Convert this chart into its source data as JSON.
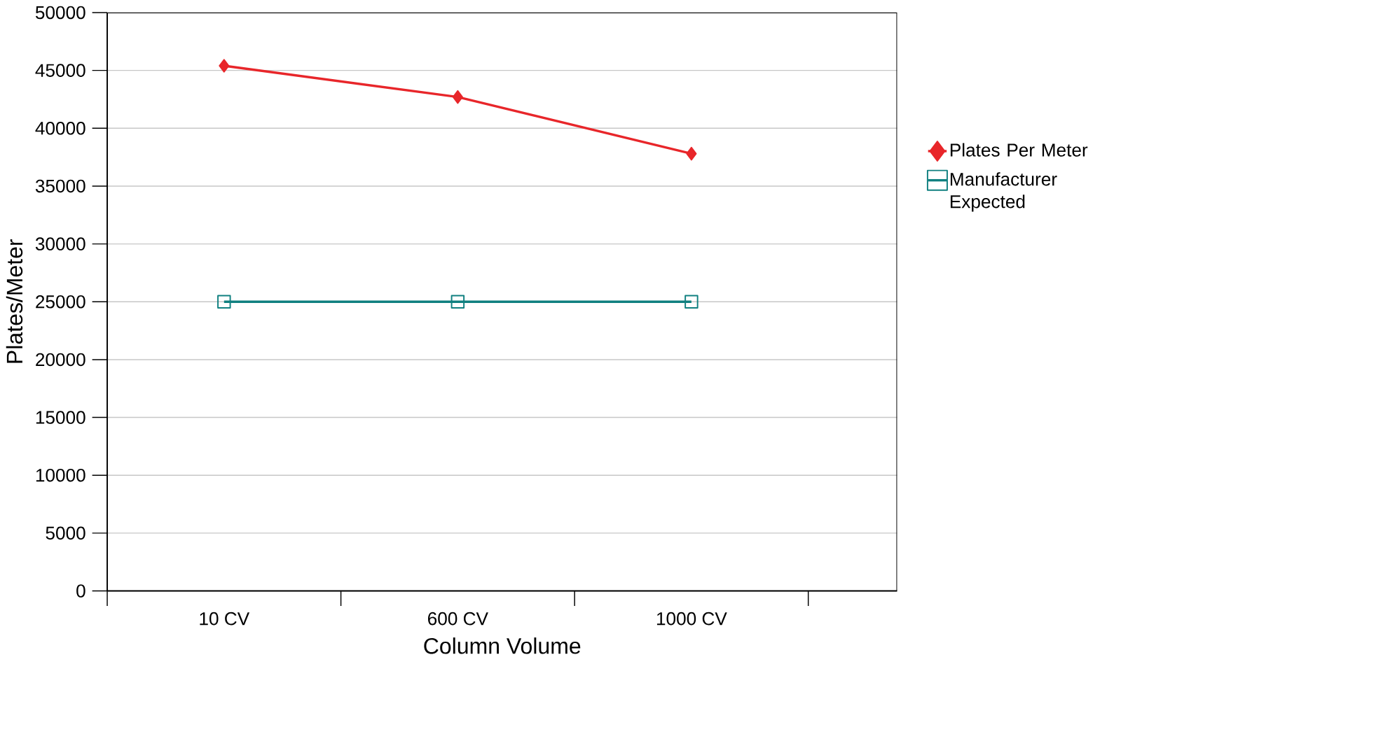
{
  "chart_data": {
    "type": "line",
    "xlabel": "Column Volume",
    "ylabel": "Plates/Meter",
    "categories": [
      "10 CV",
      "600 CV",
      "1000 CV"
    ],
    "series": [
      {
        "name": "Plates Per Meter",
        "color": "#e8262a",
        "marker": "diamond",
        "values": [
          45400,
          42700,
          37800
        ]
      },
      {
        "name": "Manufacturer Expected",
        "color": "#108080",
        "marker": "square",
        "values": [
          25000,
          25000,
          25000
        ]
      }
    ],
    "ylim": [
      0,
      50000
    ],
    "yticks": [
      0,
      5000,
      10000,
      15000,
      20000,
      25000,
      30000,
      35000,
      40000,
      45000,
      50000
    ],
    "grid": "y",
    "legend": "right",
    "line_style": "solid"
  }
}
